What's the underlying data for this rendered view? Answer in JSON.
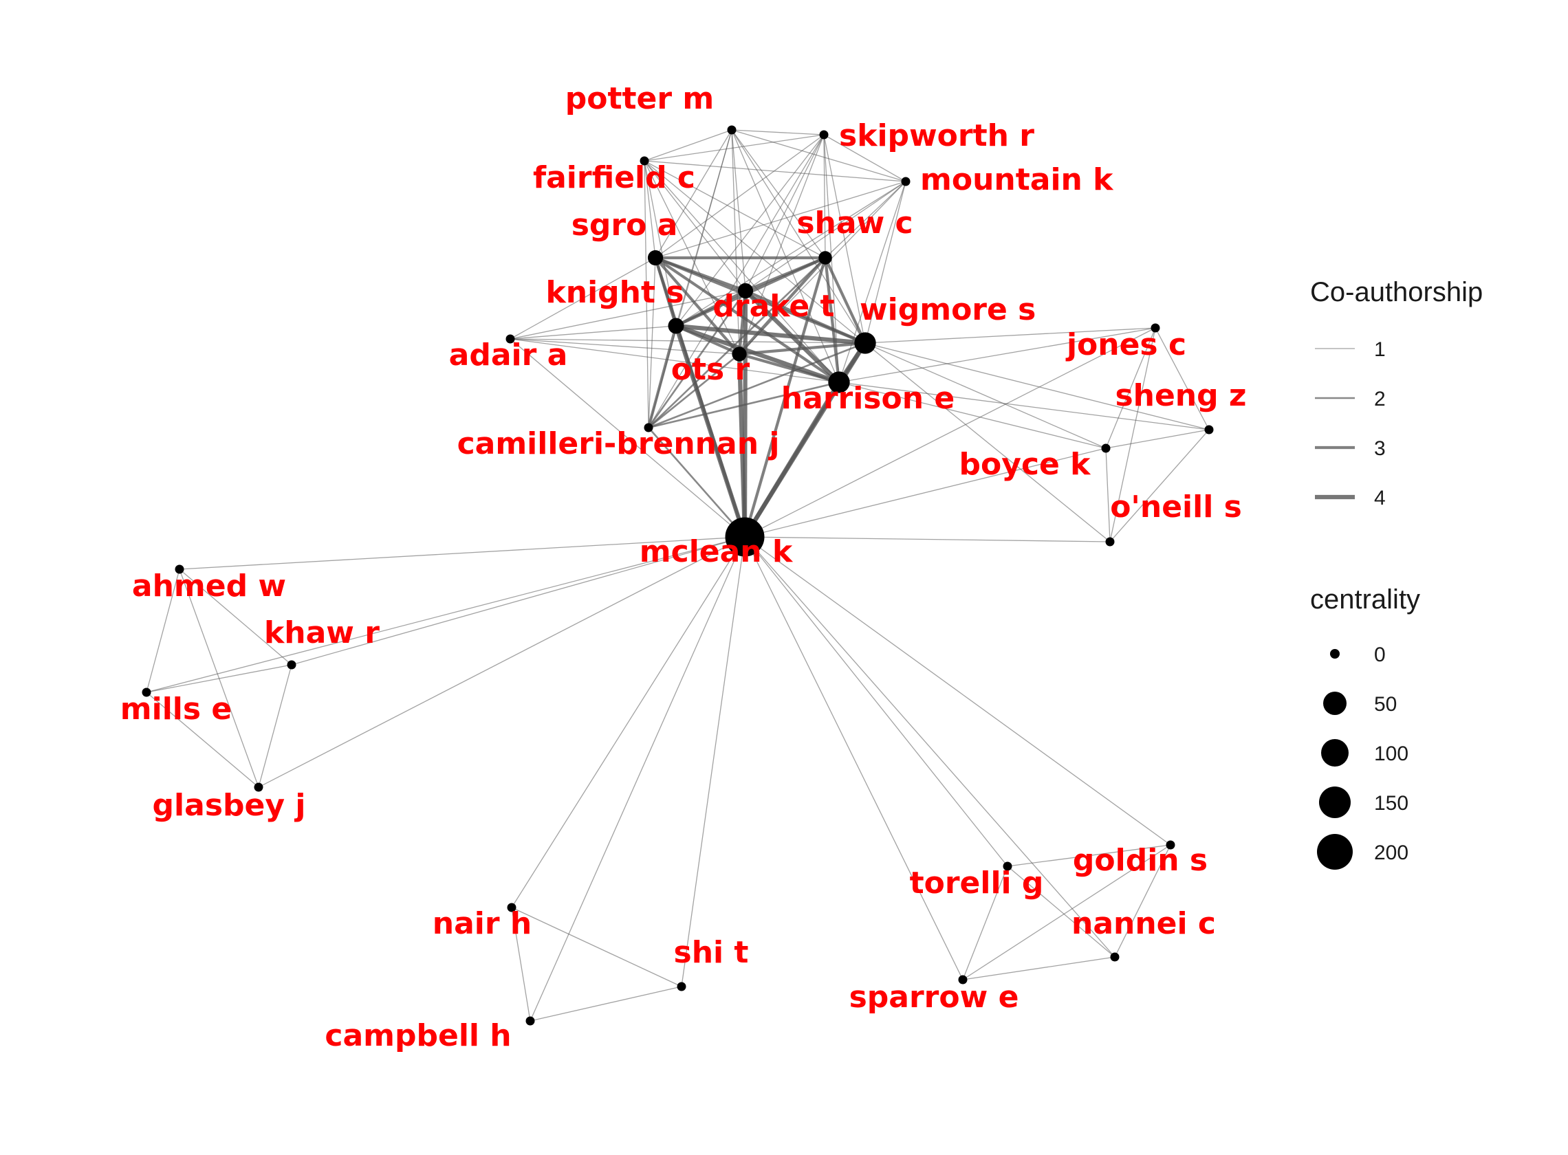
{
  "colors": {
    "label": "#ff0000",
    "node": "#000000",
    "edge": "#555555"
  },
  "nodes": [
    {
      "id": "potter m",
      "centrality": 0
    },
    {
      "id": "skipworth r",
      "centrality": 0
    },
    {
      "id": "fairfield c",
      "centrality": 0
    },
    {
      "id": "mountain k",
      "centrality": 0
    },
    {
      "id": "sgro a",
      "centrality": 10
    },
    {
      "id": "shaw c",
      "centrality": 5
    },
    {
      "id": "knight s",
      "centrality": 12
    },
    {
      "id": "drake t",
      "centrality": 10
    },
    {
      "id": "wigmore s",
      "centrality": 40
    },
    {
      "id": "adair a",
      "centrality": 0
    },
    {
      "id": "ots r",
      "centrality": 8
    },
    {
      "id": "harrison e",
      "centrality": 40
    },
    {
      "id": "jones c",
      "centrality": 0
    },
    {
      "id": "sheng z",
      "centrality": 0
    },
    {
      "id": "camilleri-brennan j",
      "centrality": 0
    },
    {
      "id": "boyce k",
      "centrality": 0
    },
    {
      "id": "o'neill s",
      "centrality": 0
    },
    {
      "id": "mclean k",
      "centrality": 230
    },
    {
      "id": "ahmed w",
      "centrality": 0
    },
    {
      "id": "khaw r",
      "centrality": 0
    },
    {
      "id": "mills e",
      "centrality": 0
    },
    {
      "id": "glasbey j",
      "centrality": 0
    },
    {
      "id": "goldin s",
      "centrality": 0
    },
    {
      "id": "torelli g",
      "centrality": 0
    },
    {
      "id": "nannei c",
      "centrality": 0
    },
    {
      "id": "nair h",
      "centrality": 0
    },
    {
      "id": "shi t",
      "centrality": 0
    },
    {
      "id": "sparrow e",
      "centrality": 0
    },
    {
      "id": "campbell h",
      "centrality": 0
    }
  ],
  "edges": [
    [
      "mclean k",
      "sgro a",
      3
    ],
    [
      "mclean k",
      "shaw c",
      3
    ],
    [
      "mclean k",
      "knight s",
      4
    ],
    [
      "mclean k",
      "drake t",
      4
    ],
    [
      "mclean k",
      "wigmore s",
      4
    ],
    [
      "mclean k",
      "ots r",
      4
    ],
    [
      "mclean k",
      "harrison e",
      4
    ],
    [
      "mclean k",
      "camilleri-brennan j",
      2
    ],
    [
      "mclean k",
      "adair a",
      1
    ],
    [
      "mclean k",
      "jones c",
      1
    ],
    [
      "mclean k",
      "boyce k",
      1
    ],
    [
      "mclean k",
      "o'neill s",
      1
    ],
    [
      "mclean k",
      "ahmed w",
      1
    ],
    [
      "mclean k",
      "khaw r",
      1
    ],
    [
      "mclean k",
      "mills e",
      1
    ],
    [
      "mclean k",
      "glasbey j",
      1
    ],
    [
      "mclean k",
      "goldin s",
      1
    ],
    [
      "mclean k",
      "torelli g",
      1
    ],
    [
      "mclean k",
      "nannei c",
      1
    ],
    [
      "mclean k",
      "nair h",
      1
    ],
    [
      "mclean k",
      "shi t",
      1
    ],
    [
      "mclean k",
      "sparrow e",
      1
    ],
    [
      "mclean k",
      "campbell h",
      1
    ],
    [
      "sgro a",
      "shaw c",
      3
    ],
    [
      "sgro a",
      "knight s",
      3
    ],
    [
      "sgro a",
      "drake t",
      3
    ],
    [
      "sgro a",
      "wigmore s",
      3
    ],
    [
      "sgro a",
      "ots r",
      3
    ],
    [
      "sgro a",
      "harrison e",
      3
    ],
    [
      "sgro a",
      "camilleri-brennan j",
      1
    ],
    [
      "sgro a",
      "potter m",
      1
    ],
    [
      "sgro a",
      "fairfield c",
      1
    ],
    [
      "sgro a",
      "skipworth r",
      1
    ],
    [
      "sgro a",
      "mountain k",
      1
    ],
    [
      "sgro a",
      "adair a",
      1
    ],
    [
      "shaw c",
      "knight s",
      3
    ],
    [
      "shaw c",
      "drake t",
      3
    ],
    [
      "shaw c",
      "wigmore s",
      3
    ],
    [
      "shaw c",
      "ots r",
      3
    ],
    [
      "shaw c",
      "harrison e",
      3
    ],
    [
      "shaw c",
      "camilleri-brennan j",
      2
    ],
    [
      "shaw c",
      "potter m",
      1
    ],
    [
      "shaw c",
      "fairfield c",
      1
    ],
    [
      "shaw c",
      "skipworth r",
      1
    ],
    [
      "shaw c",
      "mountain k",
      1
    ],
    [
      "knight s",
      "drake t",
      3
    ],
    [
      "knight s",
      "wigmore s",
      4
    ],
    [
      "knight s",
      "ots r",
      3
    ],
    [
      "knight s",
      "harrison e",
      4
    ],
    [
      "knight s",
      "camilleri-brennan j",
      3
    ],
    [
      "knight s",
      "adair a",
      1
    ],
    [
      "knight s",
      "potter m",
      1
    ],
    [
      "knight s",
      "fairfield c",
      1
    ],
    [
      "knight s",
      "skipworth r",
      1
    ],
    [
      "knight s",
      "mountain k",
      1
    ],
    [
      "drake t",
      "wigmore s",
      3
    ],
    [
      "drake t",
      "ots r",
      3
    ],
    [
      "drake t",
      "harrison e",
      4
    ],
    [
      "drake t",
      "camilleri-brennan j",
      2
    ],
    [
      "drake t",
      "potter m",
      1
    ],
    [
      "drake t",
      "fairfield c",
      1
    ],
    [
      "drake t",
      "skipworth r",
      1
    ],
    [
      "drake t",
      "mountain k",
      1
    ],
    [
      "drake t",
      "adair a",
      1
    ],
    [
      "wigmore s",
      "ots r",
      3
    ],
    [
      "wigmore s",
      "harrison e",
      4
    ],
    [
      "wigmore s",
      "camilleri-brennan j",
      2
    ],
    [
      "wigmore s",
      "adair a",
      1
    ],
    [
      "wigmore s",
      "jones c",
      1
    ],
    [
      "wigmore s",
      "boyce k",
      1
    ],
    [
      "wigmore s",
      "sheng z",
      1
    ],
    [
      "wigmore s",
      "o'neill s",
      1
    ],
    [
      "wigmore s",
      "potter m",
      1
    ],
    [
      "wigmore s",
      "fairfield c",
      1
    ],
    [
      "wigmore s",
      "skipworth r",
      1
    ],
    [
      "wigmore s",
      "mountain k",
      1
    ],
    [
      "ots r",
      "harrison e",
      3
    ],
    [
      "ots r",
      "camilleri-brennan j",
      2
    ],
    [
      "ots r",
      "adair a",
      1
    ],
    [
      "ots r",
      "potter m",
      1
    ],
    [
      "ots r",
      "fairfield c",
      1
    ],
    [
      "ots r",
      "skipworth r",
      1
    ],
    [
      "ots r",
      "mountain k",
      1
    ],
    [
      "harrison e",
      "camilleri-brennan j",
      2
    ],
    [
      "harrison e",
      "adair a",
      1
    ],
    [
      "harrison e",
      "jones c",
      1
    ],
    [
      "harrison e",
      "boyce k",
      1
    ],
    [
      "harrison e",
      "sheng z",
      1
    ],
    [
      "harrison e",
      "potter m",
      1
    ],
    [
      "harrison e",
      "fairfield c",
      1
    ],
    [
      "harrison e",
      "skipworth r",
      1
    ],
    [
      "harrison e",
      "mountain k",
      1
    ],
    [
      "camilleri-brennan j",
      "potter m",
      1
    ],
    [
      "camilleri-brennan j",
      "skipworth r",
      1
    ],
    [
      "camilleri-brennan j",
      "fairfield c",
      1
    ],
    [
      "potter m",
      "skipworth r",
      1
    ],
    [
      "potter m",
      "fairfield c",
      1
    ],
    [
      "potter m",
      "mountain k",
      1
    ],
    [
      "skipworth r",
      "mountain k",
      1
    ],
    [
      "skipworth r",
      "fairfield c",
      1
    ],
    [
      "fairfield c",
      "mountain k",
      1
    ],
    [
      "jones c",
      "boyce k",
      1
    ],
    [
      "jones c",
      "sheng z",
      1
    ],
    [
      "jones c",
      "o'neill s",
      1
    ],
    [
      "boyce k",
      "sheng z",
      1
    ],
    [
      "boyce k",
      "o'neill s",
      1
    ],
    [
      "sheng z",
      "o'neill s",
      1
    ],
    [
      "ahmed w",
      "khaw r",
      1
    ],
    [
      "ahmed w",
      "mills e",
      1
    ],
    [
      "ahmed w",
      "glasbey j",
      1
    ],
    [
      "khaw r",
      "mills e",
      1
    ],
    [
      "khaw r",
      "glasbey j",
      1
    ],
    [
      "mills e",
      "glasbey j",
      1
    ],
    [
      "goldin s",
      "torelli g",
      1
    ],
    [
      "goldin s",
      "nannei c",
      1
    ],
    [
      "goldin s",
      "sparrow e",
      1
    ],
    [
      "torelli g",
      "nannei c",
      1
    ],
    [
      "torelli g",
      "sparrow e",
      1
    ],
    [
      "nannei c",
      "sparrow e",
      1
    ],
    [
      "nair h",
      "shi t",
      1
    ],
    [
      "nair h",
      "campbell h",
      1
    ],
    [
      "shi t",
      "campbell h",
      1
    ]
  ],
  "legend": {
    "edge_title": "Co-authorship",
    "edge_items": [
      {
        "label": "1",
        "weight": 1
      },
      {
        "label": "2",
        "weight": 2
      },
      {
        "label": "3",
        "weight": 3
      },
      {
        "label": "4",
        "weight": 4
      }
    ],
    "size_title": "centrality",
    "size_items": [
      {
        "label": "0",
        "value": 0
      },
      {
        "label": "50",
        "value": 50
      },
      {
        "label": "100",
        "value": 100
      },
      {
        "label": "150",
        "value": 150
      },
      {
        "label": "200",
        "value": 200
      }
    ]
  }
}
